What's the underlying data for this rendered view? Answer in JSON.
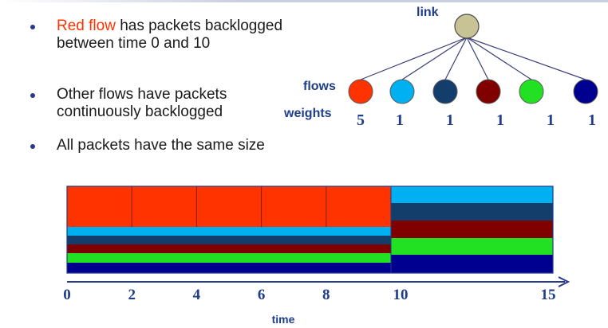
{
  "bullets": [
    {
      "highlight": "Red flow",
      "text": " has packets backlogged between time 0 and 10"
    },
    {
      "text": "Other flows have packets continuously backlogged"
    },
    {
      "text": "All packets have the same size"
    }
  ],
  "tree": {
    "link_label": "link",
    "flows_label": "flows",
    "weights_label": "weights",
    "flows": [
      {
        "color": "#ff3300",
        "weight": "5"
      },
      {
        "color": "#00b0f0",
        "weight": "1"
      },
      {
        "color": "#133d6b",
        "weight": "1"
      },
      {
        "color": "#800000",
        "weight": "1"
      },
      {
        "color": "#22e022",
        "weight": "1"
      },
      {
        "color": "#000090",
        "weight": "1"
      }
    ],
    "link_color": "#c8c394"
  },
  "timeline": {
    "ticks": [
      "0",
      "2",
      "4",
      "6",
      "8",
      "10",
      "15"
    ],
    "axis_label": "time"
  },
  "chart_data": {
    "type": "area",
    "x_range": [
      0,
      15
    ],
    "segments": [
      {
        "flow": "red",
        "color": "#ff3300",
        "from": 0,
        "to": 10,
        "packet_boundaries": [
          2,
          4,
          6,
          8
        ]
      },
      {
        "flow": "light-blue",
        "color": "#00b0f0",
        "from": 0,
        "to": 15
      },
      {
        "flow": "dark-teal",
        "color": "#133d6b",
        "from": 0,
        "to": 15
      },
      {
        "flow": "maroon",
        "color": "#800000",
        "from": 0,
        "to": 15
      },
      {
        "flow": "green",
        "color": "#22e022",
        "from": 0,
        "to": 15
      },
      {
        "flow": "navy",
        "color": "#000090",
        "from": 0,
        "to": 15
      }
    ]
  }
}
